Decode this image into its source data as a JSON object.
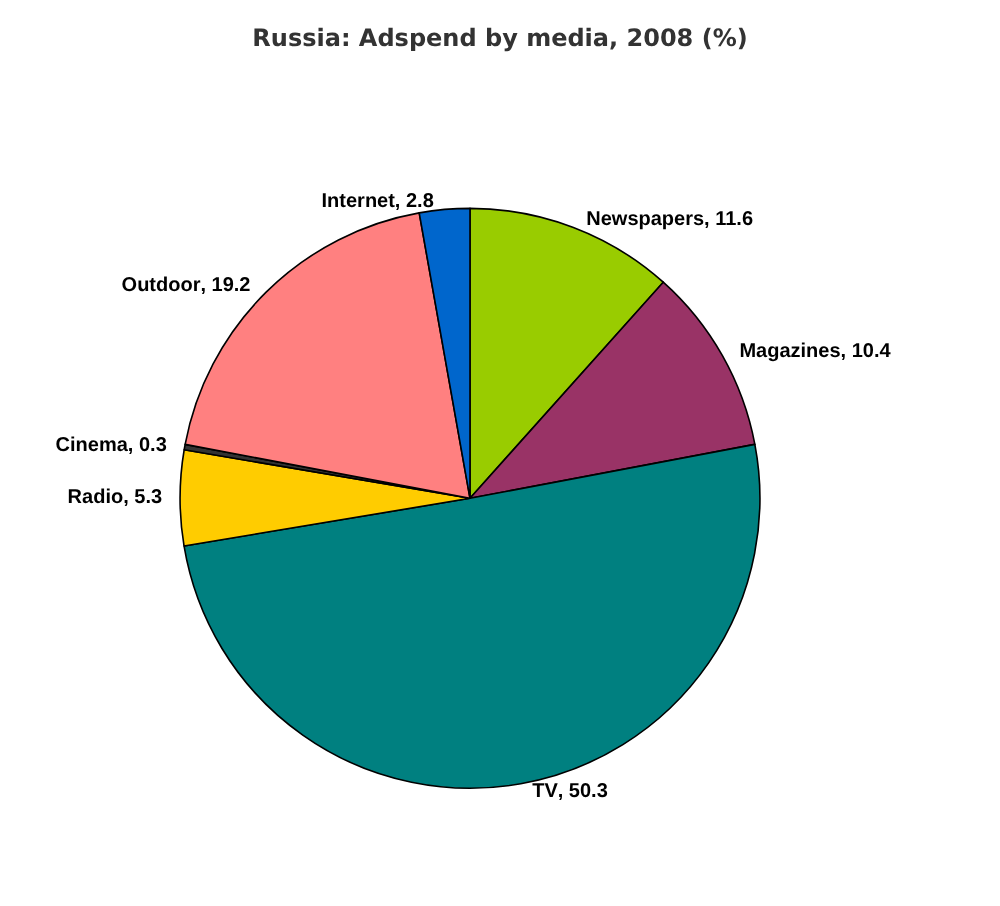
{
  "chart_data": {
    "type": "pie",
    "title": "Russia: Adspend by media, 2008 (%)",
    "categories": [
      "Newspapers",
      "Magazines",
      "TV",
      "Radio",
      "Cinema",
      "Outdoor",
      "Internet"
    ],
    "values": [
      11.6,
      10.4,
      50.3,
      5.3,
      0.3,
      19.2,
      2.8
    ],
    "colors": [
      "#99cc00",
      "#993366",
      "#008080",
      "#ffcc00",
      "#333333",
      "#ff8080",
      "#0066cc"
    ],
    "value_labels": [
      ", 11.6",
      ", 10.4",
      ", 50.3",
      ", 5.3",
      ", 0.3",
      ", 19.2",
      ", 2.8"
    ],
    "legend": false
  }
}
